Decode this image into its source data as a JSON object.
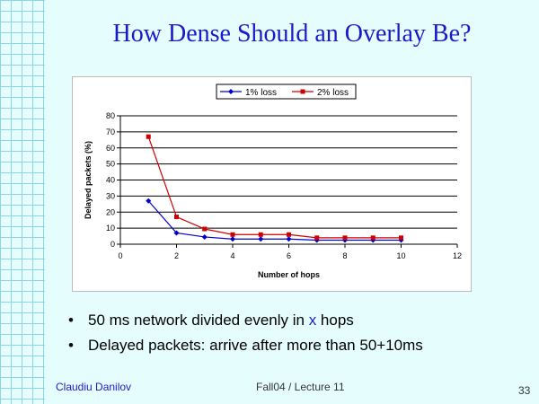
{
  "slide": {
    "title": "How Dense Should an Overlay Be?",
    "bullets": [
      {
        "before": "50 ms network divided evenly in ",
        "highlight": "x",
        "after": " hops"
      },
      {
        "before": "Delayed packets: arrive after more than 50+10ms",
        "highlight": "",
        "after": ""
      }
    ],
    "footer": {
      "author": "Claudiu Danilov",
      "course": "Fall04 / Lecture 11",
      "page": "33"
    }
  },
  "chart_data": {
    "type": "line",
    "xlabel": "Number of hops",
    "ylabel": "Delayed packets (%)",
    "xlim": [
      0,
      12
    ],
    "ylim": [
      0,
      80
    ],
    "xticks": [
      0,
      2,
      4,
      6,
      8,
      10,
      12
    ],
    "yticks": [
      0,
      10,
      20,
      30,
      40,
      50,
      60,
      70,
      80
    ],
    "grid": "horizontal",
    "legend_position": "top",
    "x": [
      1,
      2,
      3,
      4,
      5,
      6,
      7,
      8,
      9,
      10
    ],
    "series": [
      {
        "name": "1% loss",
        "color": "#0000cc",
        "marker": "diamond",
        "values": [
          27,
          7,
          4.5,
          3.2,
          3.2,
          3.2,
          2.5,
          2.5,
          2.5,
          2.5
        ]
      },
      {
        "name": "2% loss",
        "color": "#cc0000",
        "marker": "square",
        "values": [
          67,
          17,
          9.5,
          6,
          6,
          6,
          4,
          4,
          4,
          4
        ]
      }
    ]
  }
}
